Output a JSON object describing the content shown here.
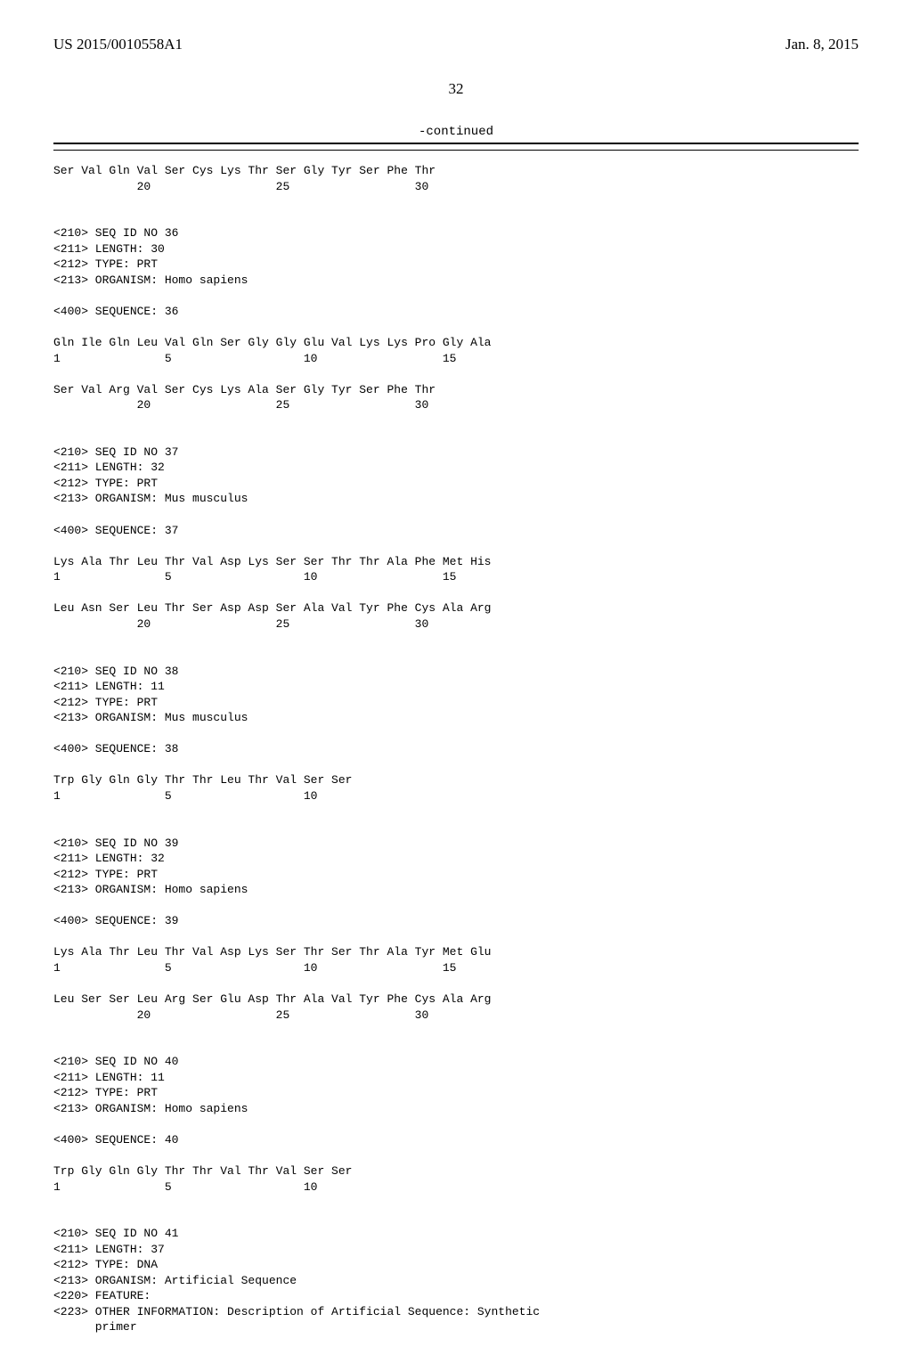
{
  "header": {
    "pub_no": "US 2015/0010558A1",
    "date": "Jan. 8, 2015"
  },
  "page_number": "32",
  "continued_label": "-continued",
  "blocks": [
    {
      "lines": [
        "Ser Val Gln Val Ser Cys Lys Thr Ser Gly Tyr Ser Phe Thr",
        "            20                  25                  30"
      ]
    },
    {
      "lines": [
        "<210> SEQ ID NO 36",
        "<211> LENGTH: 30",
        "<212> TYPE: PRT",
        "<213> ORGANISM: Homo sapiens",
        "",
        "<400> SEQUENCE: 36",
        "",
        "Gln Ile Gln Leu Val Gln Ser Gly Gly Glu Val Lys Lys Pro Gly Ala",
        "1               5                   10                  15",
        "",
        "Ser Val Arg Val Ser Cys Lys Ala Ser Gly Tyr Ser Phe Thr",
        "            20                  25                  30"
      ]
    },
    {
      "lines": [
        "<210> SEQ ID NO 37",
        "<211> LENGTH: 32",
        "<212> TYPE: PRT",
        "<213> ORGANISM: Mus musculus",
        "",
        "<400> SEQUENCE: 37",
        "",
        "Lys Ala Thr Leu Thr Val Asp Lys Ser Ser Thr Thr Ala Phe Met His",
        "1               5                   10                  15",
        "",
        "Leu Asn Ser Leu Thr Ser Asp Asp Ser Ala Val Tyr Phe Cys Ala Arg",
        "            20                  25                  30"
      ]
    },
    {
      "lines": [
        "<210> SEQ ID NO 38",
        "<211> LENGTH: 11",
        "<212> TYPE: PRT",
        "<213> ORGANISM: Mus musculus",
        "",
        "<400> SEQUENCE: 38",
        "",
        "Trp Gly Gln Gly Thr Thr Leu Thr Val Ser Ser",
        "1               5                   10"
      ]
    },
    {
      "lines": [
        "<210> SEQ ID NO 39",
        "<211> LENGTH: 32",
        "<212> TYPE: PRT",
        "<213> ORGANISM: Homo sapiens",
        "",
        "<400> SEQUENCE: 39",
        "",
        "Lys Ala Thr Leu Thr Val Asp Lys Ser Thr Ser Thr Ala Tyr Met Glu",
        "1               5                   10                  15",
        "",
        "Leu Ser Ser Leu Arg Ser Glu Asp Thr Ala Val Tyr Phe Cys Ala Arg",
        "            20                  25                  30"
      ]
    },
    {
      "lines": [
        "<210> SEQ ID NO 40",
        "<211> LENGTH: 11",
        "<212> TYPE: PRT",
        "<213> ORGANISM: Homo sapiens",
        "",
        "<400> SEQUENCE: 40",
        "",
        "Trp Gly Gln Gly Thr Thr Val Thr Val Ser Ser",
        "1               5                   10"
      ]
    },
    {
      "lines": [
        "<210> SEQ ID NO 41",
        "<211> LENGTH: 37",
        "<212> TYPE: DNA",
        "<213> ORGANISM: Artificial Sequence",
        "<220> FEATURE:",
        "<223> OTHER INFORMATION: Description of Artificial Sequence: Synthetic",
        "      primer"
      ]
    }
  ]
}
